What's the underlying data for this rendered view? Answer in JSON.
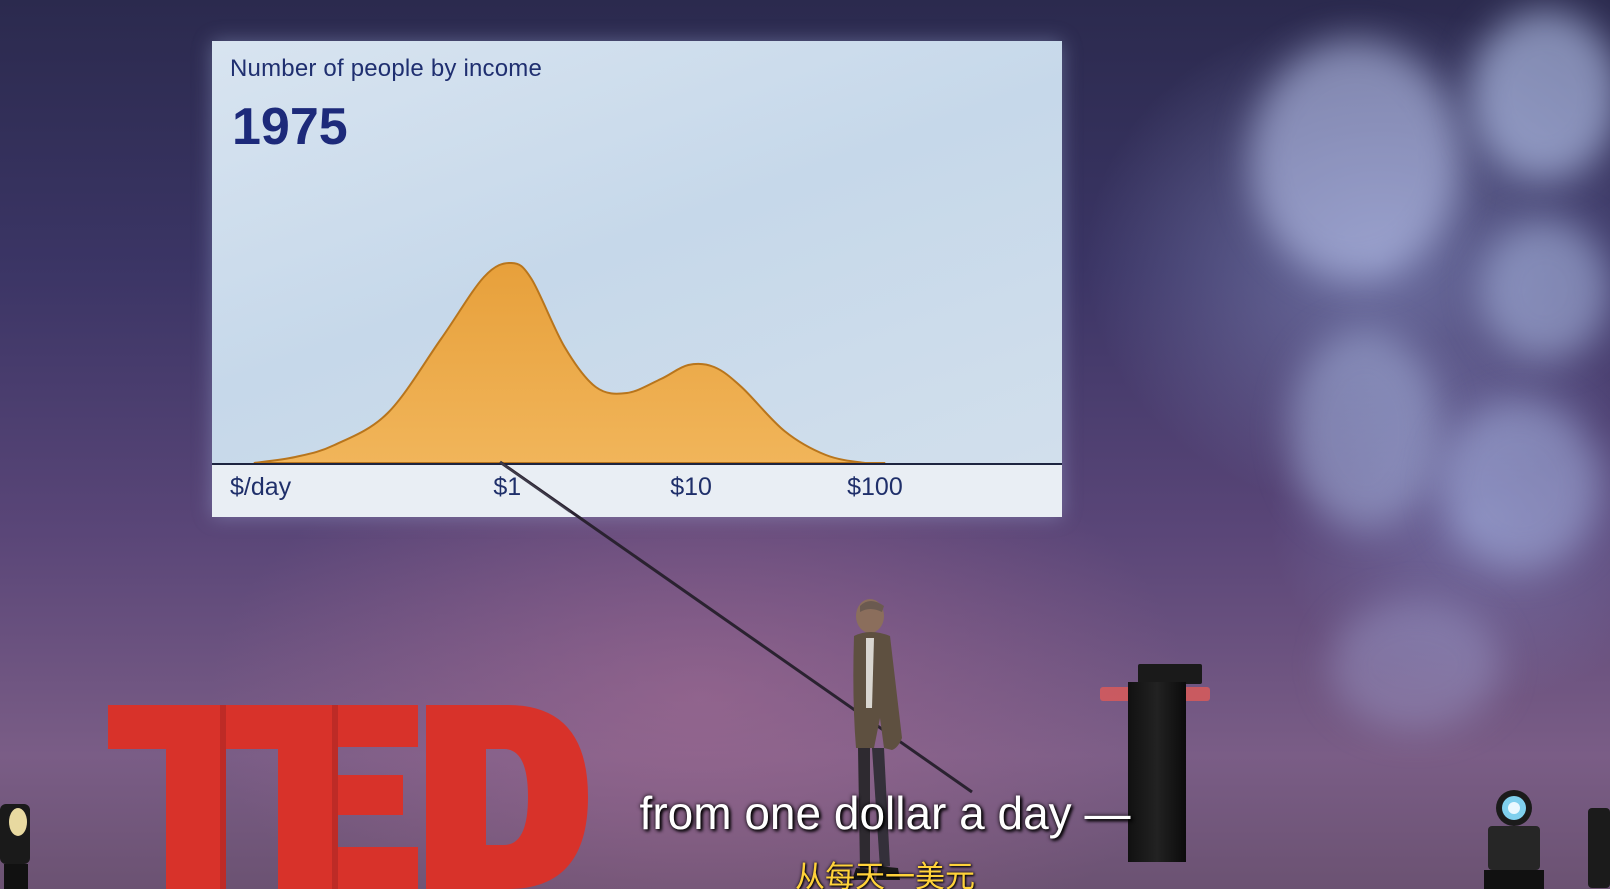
{
  "slide": {
    "title": "Number of people by income",
    "year": "1975",
    "colors": {
      "area_fill": "#e9a23d",
      "area_stroke": "#b8751c",
      "text": "#1f2f70"
    }
  },
  "chart_data": {
    "type": "area",
    "title": "Number of people by income",
    "subtitle": "1975",
    "xlabel": "$/day",
    "x_scale": "log",
    "xtick_labels": [
      "$1",
      "$10",
      "$100"
    ],
    "xtick_values": [
      1,
      10,
      100
    ],
    "xlim": [
      0.03,
      1000
    ],
    "ylim": [
      0,
      1.05
    ],
    "grid": false,
    "series": [
      {
        "x": [
          0.035,
          0.06,
          0.1,
          0.2,
          0.4,
          0.7,
          1.0,
          1.3,
          2.0,
          3.0,
          4.5,
          7,
          10,
          14,
          20,
          35,
          60,
          100,
          130
        ],
        "values": [
          0.0,
          0.03,
          0.09,
          0.25,
          0.62,
          0.93,
          1.0,
          0.92,
          0.58,
          0.38,
          0.35,
          0.42,
          0.49,
          0.48,
          0.38,
          0.16,
          0.04,
          0.0,
          0.0
        ]
      }
    ]
  },
  "subtitles": {
    "english": "from one dollar a day —",
    "chinese": "从每天一美元"
  },
  "logo": {
    "text": "TED",
    "color": "#d8322a"
  }
}
